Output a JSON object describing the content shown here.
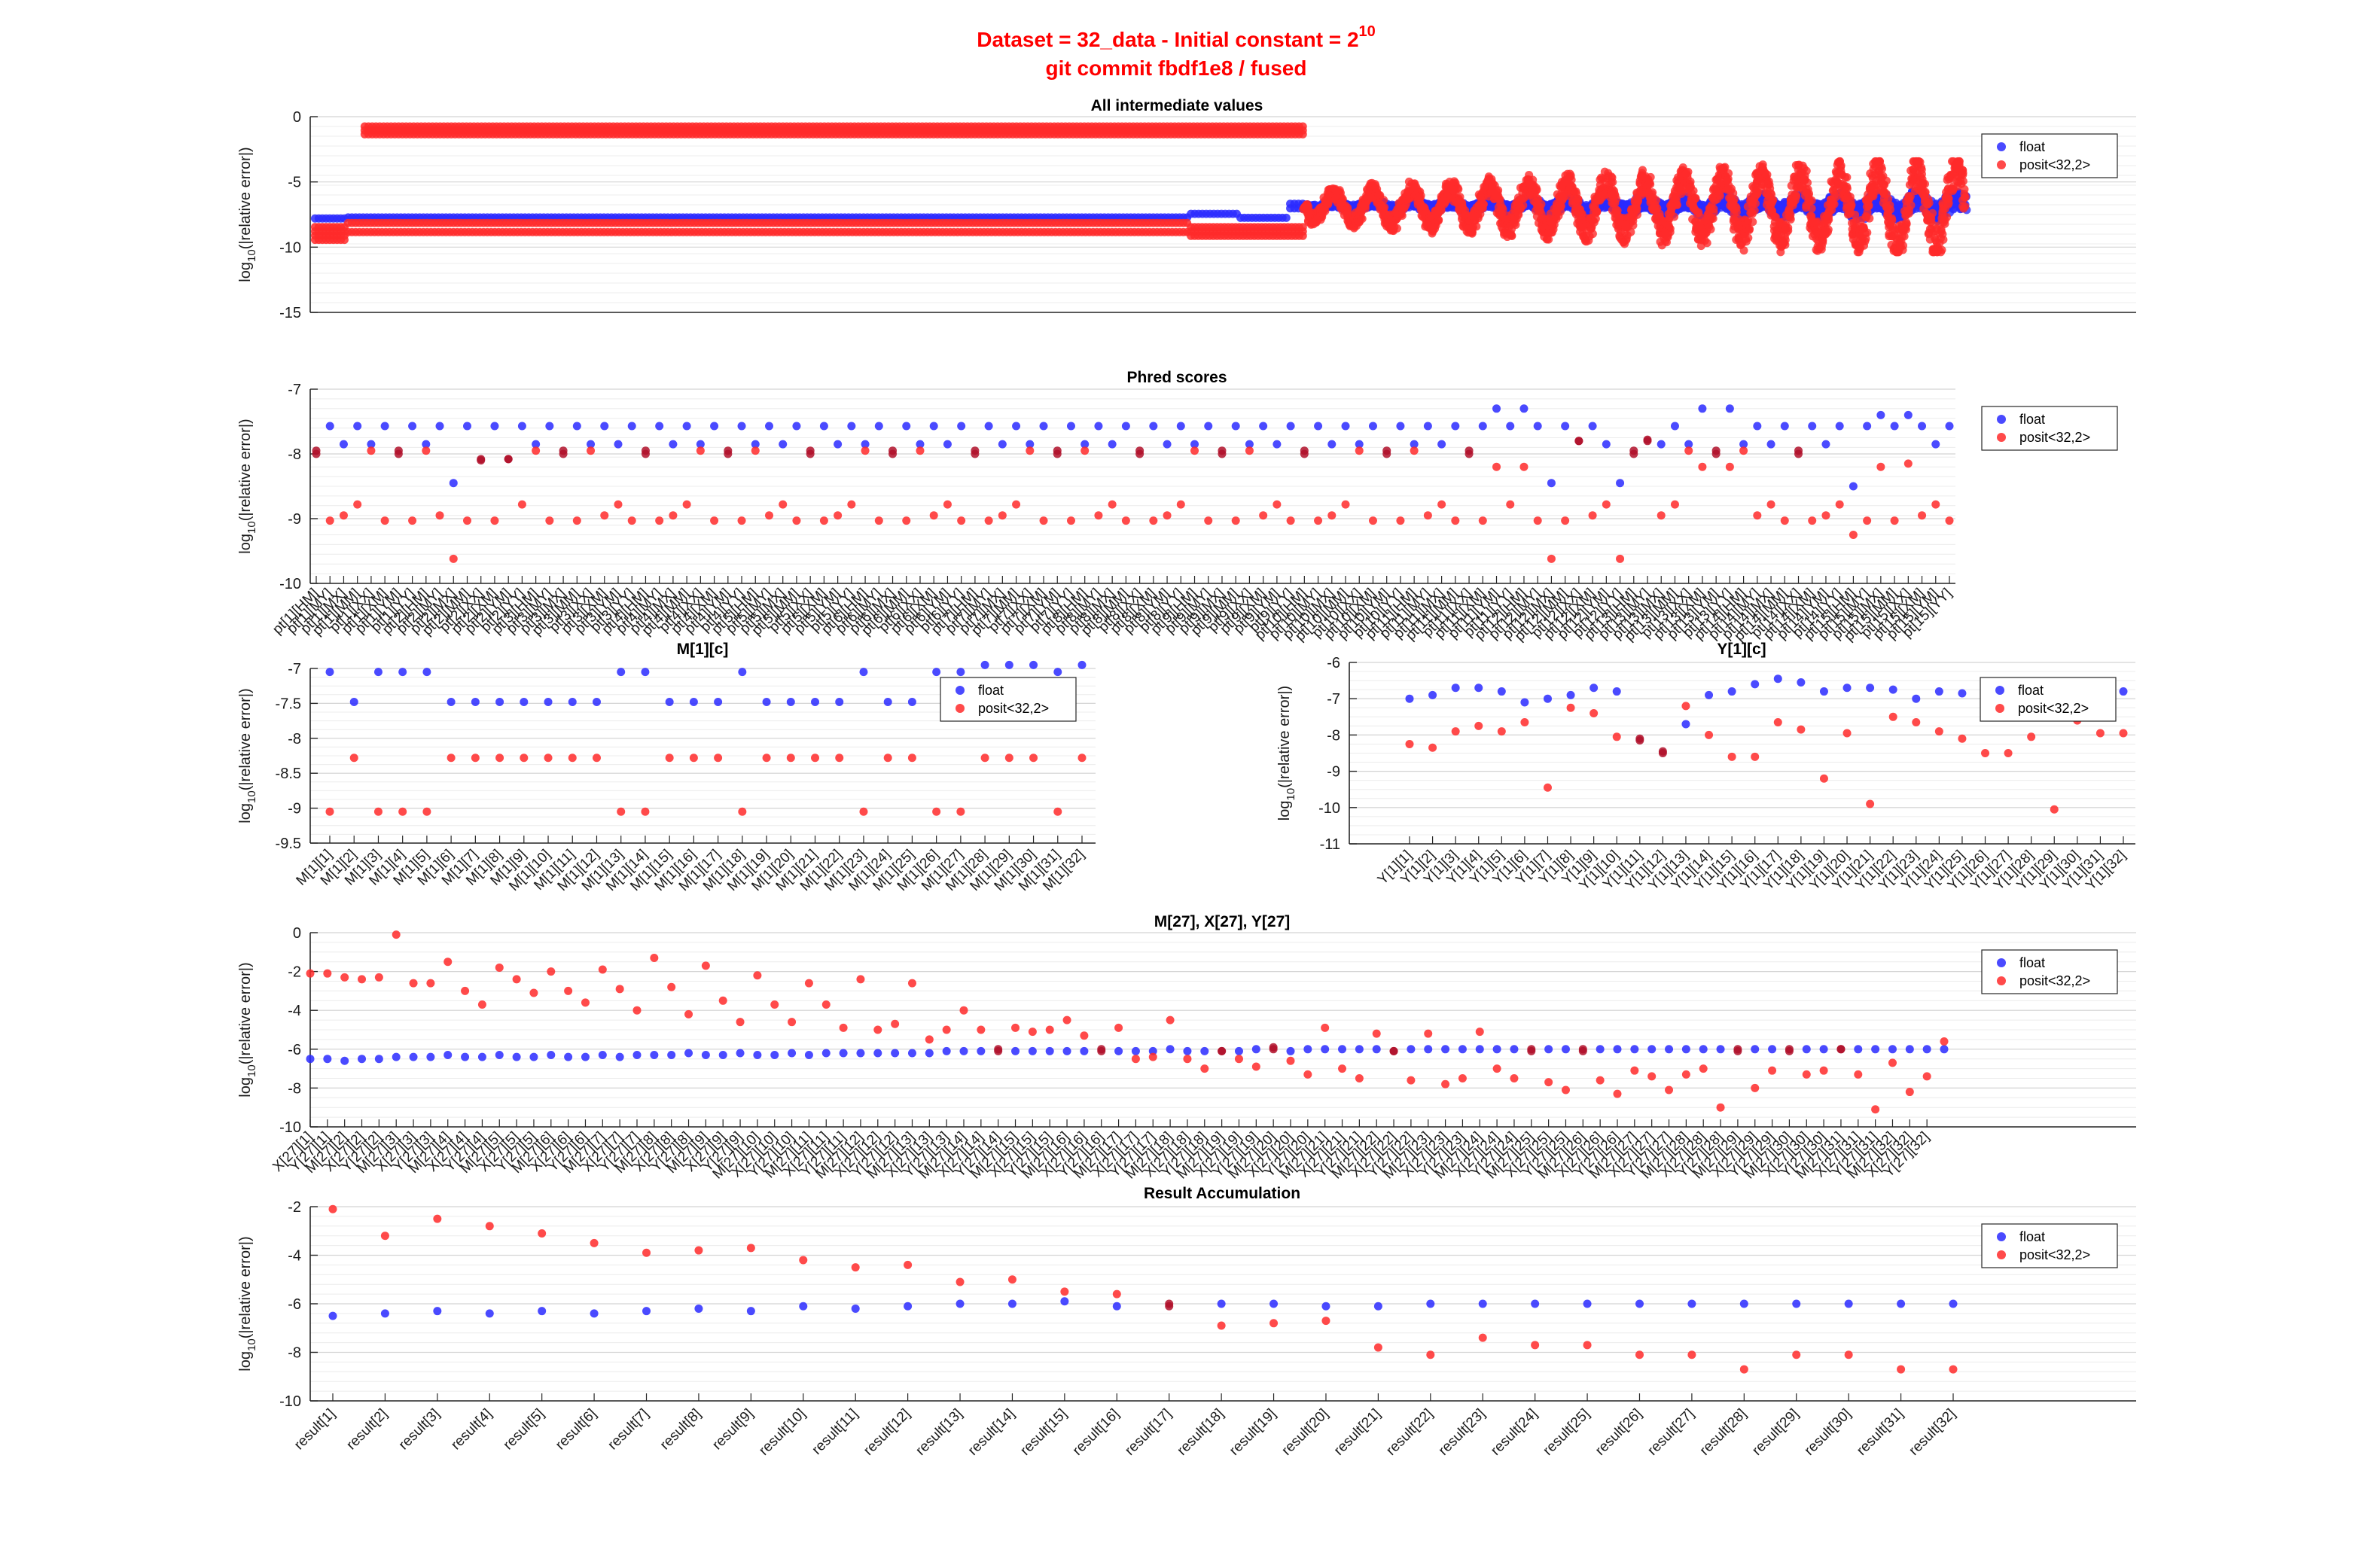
{
  "figure": {
    "title_line1": "Dataset = 32_data - Initial constant = 2",
    "title_exponent": "10",
    "title_line2": "git commit fbdf1e8 / fused"
  },
  "colors": {
    "float": "#2a2aff",
    "posit": "#ff2a2a",
    "overlap": "#b0102a"
  },
  "legend": [
    "float",
    "posit<32,2>"
  ],
  "chart_data": [
    {
      "id": "all",
      "type": "scatter",
      "title": "All intermediate values",
      "ylabel": "log10(|relative error|)",
      "ylim": [
        -15,
        0
      ],
      "yticks": [
        0,
        -5,
        -10,
        -15
      ],
      "series": [
        {
          "name": "float",
          "segments": [
            {
              "x": [
                0.0,
                0.02
              ],
              "y": [
                -7.6,
                -8.0
              ],
              "style": "band"
            },
            {
              "x": [
                0.02,
                0.53
              ],
              "y": [
                -7.55,
                -7.9
              ],
              "style": "band"
            },
            {
              "x": [
                0.53,
                0.56
              ],
              "y": [
                -7.2,
                -7.7
              ],
              "style": "band"
            },
            {
              "x": [
                0.56,
                0.59
              ],
              "y": [
                -7.6,
                -7.9
              ],
              "style": "band"
            },
            {
              "x": [
                0.59,
                0.6
              ],
              "y": [
                -6.5,
                -7.2
              ],
              "style": "band"
            },
            {
              "x": [
                0.6,
                1.0
              ],
              "y": [
                -5.8,
                -8.8
              ],
              "style": "cloud"
            }
          ]
        },
        {
          "name": "posit<32,2>",
          "segments": [
            {
              "x": [
                0.0,
                0.02
              ],
              "y": [
                -8.3,
                -9.6
              ],
              "style": "band"
            },
            {
              "x": [
                0.03,
                0.6
              ],
              "y": [
                -0.6,
                -1.5
              ],
              "style": "band"
            },
            {
              "x": [
                0.02,
                0.53
              ],
              "y": [
                -8.7,
                -9.0
              ],
              "style": "band"
            },
            {
              "x": [
                0.02,
                0.53
              ],
              "y": [
                -8.0,
                -8.3
              ],
              "style": "band"
            },
            {
              "x": [
                0.53,
                0.6
              ],
              "y": [
                -8.3,
                -9.3
              ],
              "style": "band"
            },
            {
              "x": [
                0.6,
                1.0
              ],
              "y": [
                -4.0,
                -9.8
              ],
              "style": "cloud"
            }
          ]
        }
      ]
    },
    {
      "id": "phred",
      "type": "scatter",
      "title": "Phred scores",
      "ylabel": "log10(|relative error|)",
      "ylim": [
        -10,
        -7
      ],
      "yticks": [
        -7,
        -8,
        -9,
        -10
      ],
      "n": 120,
      "float_pattern": [
        -8.0,
        -7.57,
        -7.85,
        -7.57,
        -7.85,
        -7.57,
        -8.0,
        -7.57,
        -7.85,
        -7.57,
        -7.85,
        -7.57
      ],
      "posit_pattern": [
        -8.95,
        -8.78,
        -9.03,
        -7.95,
        -9.03,
        -8.95,
        -8.78,
        -7.95,
        -9.03,
        -7.95,
        -9.03,
        -7.95
      ],
      "overrides": [
        {
          "i": 10,
          "f": -8.45,
          "p": -9.62
        },
        {
          "i": 12,
          "f": -8.08,
          "p": -8.1
        },
        {
          "i": 14,
          "f": -8.08,
          "p": -8.08
        },
        {
          "i": 86,
          "f": -7.3,
          "p": -8.2
        },
        {
          "i": 88,
          "f": -7.3,
          "p": -8.2
        },
        {
          "i": 90,
          "f": -8.45,
          "p": -9.62
        },
        {
          "i": 92,
          "f": -7.8,
          "p": -7.8
        },
        {
          "i": 95,
          "f": -8.45,
          "p": -9.62
        },
        {
          "i": 97,
          "f": -7.8,
          "p": -7.78
        },
        {
          "i": 101,
          "f": -7.3,
          "p": -8.2
        },
        {
          "i": 103,
          "f": -7.3,
          "p": -8.2
        },
        {
          "i": 112,
          "f": -8.5,
          "p": -9.25
        },
        {
          "i": 114,
          "f": -7.4,
          "p": -8.2
        },
        {
          "i": 116,
          "f": -7.4,
          "p": -8.15
        }
      ],
      "xtick_labels": [
        "pt[1][HM]",
        "pt[1][MY]",
        "pt[1][MX]",
        "pt[1][MM]",
        "pt[1][XX]",
        "pt[1][XM]",
        "pt[1][YM]",
        "pt[1][YY]",
        "pt[2][HM]",
        "pt[2][MY]",
        "pt[2][MX]",
        "pt[2][MM]",
        "pt[2][XX]",
        "pt[2][XM]",
        "pt[2][YM]",
        "pt[2][YY]",
        "pt[3][HM]",
        "pt[3][MY]",
        "pt[3][MX]",
        "pt[3][MM]",
        "pt[3][XX]",
        "pt[3][XM]",
        "pt[3][YM]",
        "pt[3][YY]",
        "pt[4][HM]",
        "pt[4][MY]",
        "pt[4][MX]",
        "pt[4][MM]",
        "pt[4][XX]",
        "pt[4][XM]",
        "pt[4][YM]",
        "pt[4][YY]",
        "pt[5][HM]",
        "pt[5][MY]",
        "pt[5][MX]",
        "pt[5][MM]",
        "pt[5][XX]",
        "pt[5][XM]",
        "pt[5][YM]",
        "pt[5][YY]",
        "pt[6][HM]",
        "pt[6][MY]",
        "pt[6][MX]",
        "pt[6][MM]",
        "pt[6][XX]",
        "pt[6][XM]",
        "pt[6][YM]",
        "pt[6][YY]",
        "pt[7][HM]",
        "pt[7][MY]",
        "pt[7][MX]",
        "pt[7][MM]",
        "pt[7][XX]",
        "pt[7][XM]",
        "pt[7][YM]",
        "pt[7][YY]",
        "pt[8][HM]",
        "pt[8][MY]",
        "pt[8][MX]",
        "pt[8][MM]",
        "pt[8][XX]",
        "pt[8][XM]",
        "pt[8][YM]",
        "pt[8][YY]",
        "pt[9][HM]",
        "pt[9][MY]",
        "pt[9][MX]",
        "pt[9][MM]",
        "pt[9][XX]",
        "pt[9][XM]",
        "pt[9][YM]",
        "pt[9][YY]",
        "pt[10][HM]",
        "pt[10][MY]",
        "pt[10][MX]",
        "pt[10][MM]",
        "pt[10][XX]",
        "pt[10][XM]",
        "pt[10][YM]",
        "pt[10][YY]",
        "pt[11][HM]",
        "pt[11][MY]",
        "pt[11][MX]",
        "pt[11][MM]",
        "pt[11][XX]",
        "pt[11][XM]",
        "pt[11][YM]",
        "pt[11][YY]",
        "pt[12][HM]",
        "pt[12][MY]",
        "pt[12][MX]",
        "pt[12][MM]",
        "pt[12][XX]",
        "pt[12][XM]",
        "pt[12][YM]",
        "pt[12][YY]",
        "pt[13][HM]",
        "pt[13][MY]",
        "pt[13][MX]",
        "pt[13][MM]",
        "pt[13][XX]",
        "pt[13][XM]",
        "pt[13][YM]",
        "pt[13][YY]",
        "pt[14][HM]",
        "pt[14][MY]",
        "pt[14][MX]",
        "pt[14][MM]",
        "pt[14][XX]",
        "pt[14][XM]",
        "pt[14][YM]",
        "pt[14][YY]",
        "pt[15][HM]",
        "pt[15][MY]",
        "pt[15][MX]",
        "pt[15][MM]",
        "pt[15][XX]",
        "pt[15][XM]",
        "pt[15][YM]",
        "pt[15][YY]"
      ]
    },
    {
      "id": "m1c",
      "type": "scatter",
      "title": "M[1][c]",
      "ylabel": "log10(|relative error|)",
      "ylim": [
        -9.5,
        -7
      ],
      "yticks": [
        -7,
        -7.5,
        -8,
        -8.5,
        -9,
        -9.5
      ],
      "categories": [
        "M[1][1]",
        "M[1][2]",
        "M[1][3]",
        "M[1][4]",
        "M[1][5]",
        "M[1][6]",
        "M[1][7]",
        "M[1][8]",
        "M[1][9]",
        "M[1][10]",
        "M[1][11]",
        "M[1][12]",
        "M[1][13]",
        "M[1][14]",
        "M[1][15]",
        "M[1][16]",
        "M[1][17]",
        "M[1][18]",
        "M[1][19]",
        "M[1][20]",
        "M[1][21]",
        "M[1][22]",
        "M[1][23]",
        "M[1][24]",
        "M[1][25]",
        "M[1][26]",
        "M[1][27]",
        "M[1][28]",
        "M[1][29]",
        "M[1][30]",
        "M[1][31]",
        "M[1][32]"
      ],
      "float_values": [
        -7.05,
        -7.48,
        -7.05,
        -7.05,
        -7.05,
        -7.48,
        -7.48,
        -7.48,
        -7.48,
        -7.48,
        -7.48,
        -7.48,
        -7.05,
        -7.05,
        -7.48,
        -7.48,
        -7.48,
        -7.05,
        -7.48,
        -7.48,
        -7.48,
        -7.48,
        -7.05,
        -7.48,
        -7.48,
        -7.05,
        -7.05,
        -6.95,
        -6.95,
        -6.95,
        -7.05,
        -6.95
      ],
      "posit_values": [
        -9.05,
        -8.28,
        -9.05,
        -9.05,
        -9.05,
        -8.28,
        -8.28,
        -8.28,
        -8.28,
        -8.28,
        -8.28,
        -8.28,
        -9.05,
        -9.05,
        -8.28,
        -8.28,
        -8.28,
        -9.05,
        -8.28,
        -8.28,
        -8.28,
        -8.28,
        -9.05,
        -8.28,
        -8.28,
        -9.05,
        -9.05,
        -8.28,
        -8.28,
        -8.28,
        -9.05,
        -8.28
      ]
    },
    {
      "id": "y1c",
      "type": "scatter",
      "title": "Y[1][c]",
      "ylabel": "log10(|relative error|)",
      "ylim": [
        -11,
        -6
      ],
      "yticks": [
        -6,
        -7,
        -8,
        -9,
        -10,
        -11
      ],
      "categories": [
        "Y[1][1]",
        "Y[1][2]",
        "Y[1][3]",
        "Y[1][4]",
        "Y[1][5]",
        "Y[1][6]",
        "Y[1][7]",
        "Y[1][8]",
        "Y[1][9]",
        "Y[1][10]",
        "Y[1][11]",
        "Y[1][12]",
        "Y[1][13]",
        "Y[1][14]",
        "Y[1][15]",
        "Y[1][16]",
        "Y[1][17]",
        "Y[1][18]",
        "Y[1][19]",
        "Y[1][20]",
        "Y[1][21]",
        "Y[1][22]",
        "Y[1][23]",
        "Y[1][24]",
        "Y[1][25]",
        "Y[1][26]",
        "Y[1][27]",
        "Y[1][28]",
        "Y[1][29]",
        "Y[1][30]",
        "Y[1][31]",
        "Y[1][32]"
      ],
      "float_values": [
        -7.0,
        -6.9,
        -6.7,
        -6.7,
        -6.8,
        -7.1,
        -7.0,
        -6.9,
        -6.7,
        -6.8,
        -8.1,
        -8.5,
        -7.7,
        -6.9,
        -6.8,
        -6.6,
        -6.45,
        -6.55,
        -6.8,
        -6.7,
        -6.7,
        -6.75,
        -7.0,
        -6.8,
        -6.85,
        -6.85,
        -6.85,
        -6.85,
        -6.85,
        -6.85,
        -6.85,
        -6.8
      ],
      "posit_values": [
        -8.25,
        -8.35,
        -7.9,
        -7.75,
        -7.9,
        -7.65,
        -9.45,
        -7.25,
        -7.4,
        -8.05,
        -8.15,
        -8.45,
        -7.2,
        -8.0,
        -8.6,
        -8.6,
        -7.65,
        -7.85,
        -9.2,
        -7.95,
        -9.9,
        -7.5,
        -7.65,
        -7.9,
        -8.1,
        -8.5,
        -8.5,
        -8.05,
        -10.05,
        -7.6,
        -7.95,
        -7.95
      ]
    },
    {
      "id": "m27",
      "type": "scatter",
      "title": "M[27], X[27], Y[27]",
      "ylabel": "log10(|relative error|)",
      "ylim": [
        -10,
        0
      ],
      "yticks": [
        0,
        -2,
        -4,
        -6,
        -8,
        -10
      ],
      "n": 96,
      "float_values": [
        -6.5,
        -6.5,
        -6.6,
        -6.5,
        -6.5,
        -6.4,
        -6.4,
        -6.4,
        -6.3,
        -6.4,
        -6.4,
        -6.3,
        -6.4,
        -6.4,
        -6.3,
        -6.4,
        -6.4,
        -6.3,
        -6.4,
        -6.3,
        -6.3,
        -6.3,
        -6.2,
        -6.3,
        -6.3,
        -6.2,
        -6.3,
        -6.3,
        -6.2,
        -6.3,
        -6.2,
        -6.2,
        -6.2,
        -6.2,
        -6.2,
        -6.2,
        -6.2,
        -6.1,
        -6.1,
        -6.1,
        -6.1,
        -6.1,
        -6.1,
        -6.1,
        -6.1,
        -6.1,
        -6.1,
        -6.1,
        -6.1,
        -6.1,
        -6.0,
        -6.1,
        -6.1,
        -6.1,
        -6.1,
        -6.0,
        -6.0,
        -6.1,
        -6.0,
        -6.0,
        -6.0,
        -6.0,
        -6.0,
        -6.1,
        -6.0,
        -6.0,
        -6.0,
        -6.0,
        -6.0,
        -6.0,
        -6.0,
        -6.0,
        -6.0,
        -6.0,
        -6.0,
        -6.0,
        -6.0,
        -6.0,
        -6.0,
        -6.0,
        -6.0,
        -6.0,
        -6.0,
        -6.0,
        -6.0,
        -6.0,
        -6.0,
        -6.0,
        -6.0,
        -6.0,
        -6.0,
        -6.0,
        -6.0,
        -6.0,
        -6.0,
        -6.0
      ],
      "posit_values": [
        -2.1,
        -2.1,
        -2.3,
        -2.4,
        -2.3,
        -0.1,
        -2.6,
        -2.6,
        -1.5,
        -3.0,
        -3.7,
        -1.8,
        -2.4,
        -3.1,
        -2.0,
        -3.0,
        -3.6,
        -1.9,
        -2.9,
        -4.0,
        -1.3,
        -2.8,
        -4.2,
        -1.7,
        -3.5,
        -4.6,
        -2.2,
        -3.7,
        -4.6,
        -2.6,
        -3.7,
        -4.9,
        -2.4,
        -5.0,
        -4.7,
        -2.6,
        -5.5,
        -5.0,
        -4.0,
        -5.0,
        -6.0,
        -4.9,
        -5.1,
        -5.0,
        -4.5,
        -5.3,
        -6.0,
        -4.9,
        -6.5,
        -6.4,
        -4.5,
        -6.5,
        -7.0,
        -6.1,
        -6.5,
        -6.9,
        -5.9,
        -6.6,
        -7.3,
        -4.9,
        -7.0,
        -7.5,
        -5.2,
        -6.1,
        -7.6,
        -5.2,
        -7.8,
        -7.5,
        -5.1,
        -7.0,
        -7.5,
        -6.1,
        -7.7,
        -8.1,
        -6.1,
        -7.6,
        -8.3,
        -7.1,
        -7.4,
        -8.1,
        -7.3,
        -7.0,
        -9.0,
        -6.1,
        -8.0,
        -7.1,
        -6.1,
        -7.3,
        -7.1,
        -6.0,
        -7.3,
        -9.1,
        -6.7,
        -8.2,
        -7.4,
        -5.6
      ],
      "xtick_labels": [
        "X[27][1]",
        "Y[27][1]",
        "M[27][2]",
        "X[27][2]",
        "Y[27][2]",
        "M[27][3]",
        "X[27][3]",
        "Y[27][3]",
        "M[27][4]",
        "X[27][4]",
        "Y[27][4]",
        "M[27][5]",
        "X[27][5]",
        "Y[27][5]",
        "M[27][6]",
        "X[27][6]",
        "Y[27][6]",
        "M[27][7]",
        "X[27][7]",
        "Y[27][7]",
        "M[27][8]",
        "X[27][8]",
        "Y[27][8]",
        "M[27][9]",
        "X[27][9]",
        "Y[27][9]",
        "M[27][10]",
        "X[27][10]",
        "Y[27][10]",
        "M[27][11]",
        "X[27][11]",
        "Y[27][11]",
        "M[27][12]",
        "X[27][12]",
        "Y[27][12]",
        "M[27][13]",
        "X[27][13]",
        "Y[27][13]",
        "M[27][14]",
        "X[27][14]",
        "Y[27][14]",
        "M[27][15]",
        "X[27][15]",
        "Y[27][15]",
        "M[27][16]",
        "X[27][16]",
        "Y[27][16]",
        "M[27][17]",
        "X[27][17]",
        "Y[27][17]",
        "M[27][18]",
        "X[27][18]",
        "Y[27][18]",
        "M[27][19]",
        "X[27][19]",
        "Y[27][19]",
        "M[27][20]",
        "X[27][20]",
        "Y[27][20]",
        "M[27][21]",
        "X[27][21]",
        "Y[27][21]",
        "M[27][22]",
        "X[27][22]",
        "Y[27][22]",
        "M[27][23]",
        "X[27][23]",
        "Y[27][23]",
        "M[27][24]",
        "X[27][24]",
        "Y[27][24]",
        "M[27][25]",
        "X[27][25]",
        "Y[27][25]",
        "M[27][26]",
        "X[27][26]",
        "Y[27][26]",
        "M[27][27]",
        "X[27][27]",
        "Y[27][27]",
        "M[27][28]",
        "X[27][28]",
        "Y[27][28]",
        "M[27][29]",
        "X[27][29]",
        "Y[27][29]",
        "M[27][30]",
        "X[27][30]",
        "Y[27][30]",
        "M[27][31]",
        "X[27][31]",
        "Y[27][31]",
        "M[27][32]",
        "X[27][32]",
        "Y[27][32]"
      ]
    },
    {
      "id": "result",
      "type": "scatter",
      "title": "Result Accumulation",
      "ylabel": "log10(|relative error|)",
      "ylim": [
        -10,
        -2
      ],
      "yticks": [
        -2,
        -4,
        -6,
        -8,
        -10
      ],
      "categories": [
        "result[1]",
        "result[2]",
        "result[3]",
        "result[4]",
        "result[5]",
        "result[6]",
        "result[7]",
        "result[8]",
        "result[9]",
        "result[10]",
        "result[11]",
        "result[12]",
        "result[13]",
        "result[14]",
        "result[15]",
        "result[16]",
        "result[17]",
        "result[18]",
        "result[19]",
        "result[20]",
        "result[21]",
        "result[22]",
        "result[23]",
        "result[24]",
        "result[25]",
        "result[26]",
        "result[27]",
        "result[28]",
        "result[29]",
        "result[30]",
        "result[31]",
        "result[32]"
      ],
      "float_values": [
        -6.5,
        -6.4,
        -6.3,
        -6.4,
        -6.3,
        -6.4,
        -6.3,
        -6.2,
        -6.3,
        -6.1,
        -6.2,
        -6.1,
        -6.0,
        -6.0,
        -5.9,
        -6.1,
        -6.1,
        -6.0,
        -6.0,
        -6.1,
        -6.1,
        -6.0,
        -6.0,
        -6.0,
        -6.0,
        -6.0,
        -6.0,
        -6.0,
        -6.0,
        -6.0,
        -6.0,
        -6.0
      ],
      "posit_values": [
        -2.1,
        -3.2,
        -2.5,
        -2.8,
        -3.1,
        -3.5,
        -3.9,
        -3.8,
        -3.7,
        -4.2,
        -4.5,
        -4.4,
        -5.1,
        -5.0,
        -5.5,
        -5.6,
        -6.0,
        -6.9,
        -6.8,
        -6.7,
        -7.8,
        -8.1,
        -7.4,
        -7.7,
        -7.7,
        -8.1,
        -8.1,
        -8.7,
        -8.1,
        -8.1,
        -8.7,
        -8.7
      ]
    }
  ]
}
